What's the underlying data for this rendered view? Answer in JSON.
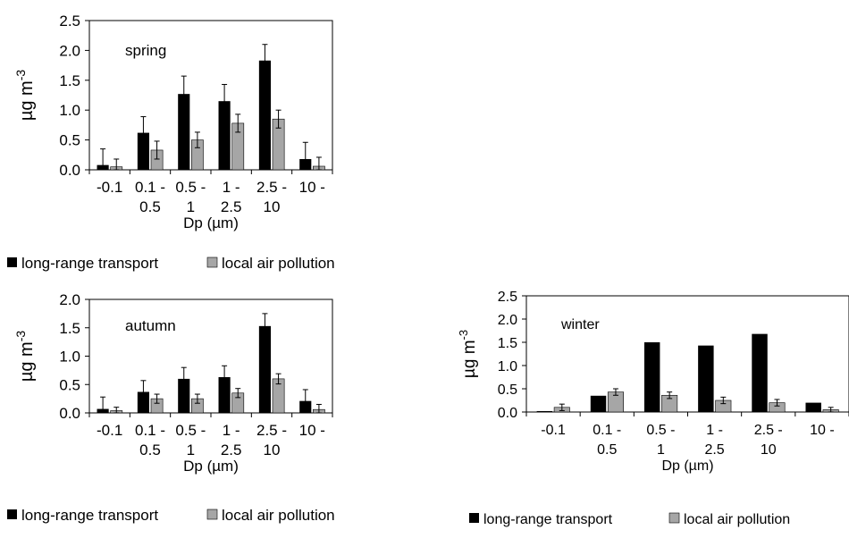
{
  "colors": {
    "series1": "#000000",
    "series2": "#a6a6a6",
    "axis": "#000000",
    "error_bar": "#000000"
  },
  "chart_data": [
    {
      "type": "bar",
      "title": "spring",
      "xlabel": "Dp (µm)",
      "ylabel": "µg m",
      "ylabel_sup": "-3",
      "ylim": [
        0,
        2.5
      ],
      "yticks": [
        "0.0",
        "0.5",
        "1.0",
        "1.5",
        "2.0",
        "2.5"
      ],
      "categories": [
        [
          "-0.1"
        ],
        [
          "0.1 -",
          "0.5"
        ],
        [
          "0.5 -",
          "1"
        ],
        [
          "1 -",
          "2.5"
        ],
        [
          "2.5 -",
          "10"
        ],
        [
          "10 -"
        ]
      ],
      "series": [
        {
          "name": "long-range transport",
          "values": [
            0.08,
            0.62,
            1.27,
            1.15,
            1.83,
            0.18
          ],
          "errors": [
            0.27,
            0.27,
            0.3,
            0.28,
            0.27,
            0.28
          ]
        },
        {
          "name": "local air pollution",
          "values": [
            0.05,
            0.33,
            0.5,
            0.78,
            0.85,
            0.06
          ],
          "errors": [
            0.13,
            0.15,
            0.13,
            0.15,
            0.15,
            0.15
          ]
        }
      ],
      "grid": false,
      "legend": [
        "long-range transport",
        "local air pollution"
      ],
      "legend_position": "bottom"
    },
    {
      "type": "bar",
      "title": "autumn",
      "xlabel": "Dp (µm)",
      "ylabel": "µg m",
      "ylabel_sup": "-3",
      "ylim": [
        0,
        2.0
      ],
      "yticks": [
        "0.0",
        "0.5",
        "1.0",
        "1.5",
        "2.0"
      ],
      "categories": [
        [
          "-0.1"
        ],
        [
          "0.1 -",
          "0.5"
        ],
        [
          "0.5 -",
          "1"
        ],
        [
          "1 -",
          "2.5"
        ],
        [
          "2.5 -",
          "10"
        ],
        [
          "10 -"
        ]
      ],
      "series": [
        {
          "name": "long-range transport",
          "values": [
            0.07,
            0.37,
            0.6,
            0.63,
            1.53,
            0.21
          ],
          "errors": [
            0.21,
            0.2,
            0.2,
            0.2,
            0.22,
            0.2
          ]
        },
        {
          "name": "local air pollution",
          "values": [
            0.04,
            0.25,
            0.25,
            0.35,
            0.6,
            0.06
          ],
          "errors": [
            0.06,
            0.08,
            0.08,
            0.08,
            0.09,
            0.09
          ]
        }
      ],
      "grid": false,
      "legend": [
        "long-range transport",
        "local air pollution"
      ],
      "legend_position": "bottom"
    },
    {
      "type": "bar",
      "title": "winter",
      "xlabel": "Dp (µm)",
      "ylabel": "µg m",
      "ylabel_sup": "-3",
      "ylim": [
        0,
        2.5
      ],
      "yticks": [
        "0.0",
        "0.5",
        "1.0",
        "1.5",
        "2.0",
        "2.5"
      ],
      "categories": [
        [
          "-0.1"
        ],
        [
          "0.1 -",
          "0.5"
        ],
        [
          "0.5 -",
          "1"
        ],
        [
          "1 -",
          "2.5"
        ],
        [
          "2.5 -",
          "10"
        ],
        [
          "10 -"
        ]
      ],
      "series": [
        {
          "name": "long-range transport",
          "values": [
            0.02,
            0.35,
            1.5,
            1.43,
            1.68,
            0.2
          ],
          "errors": [
            0,
            0,
            0,
            0,
            0,
            0
          ]
        },
        {
          "name": "local air pollution",
          "values": [
            0.1,
            0.43,
            0.36,
            0.25,
            0.2,
            0.05
          ],
          "errors": [
            0.07,
            0.07,
            0.07,
            0.07,
            0.07,
            0.05
          ]
        }
      ],
      "grid": false,
      "legend": [
        "long-range transport",
        "local air pollution"
      ],
      "legend_position": "bottom"
    }
  ]
}
